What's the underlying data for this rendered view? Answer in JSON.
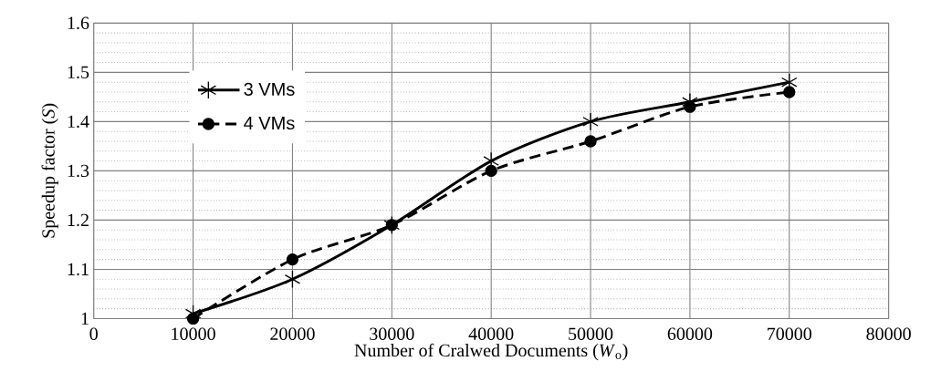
{
  "chart_data": {
    "type": "line",
    "xlabel": "Number of Cralwed Documents (*W*$_{o}$)",
    "ylabel": "Speedup factor (*S*)",
    "x": [
      10000,
      20000,
      30000,
      40000,
      50000,
      60000,
      70000
    ],
    "series": [
      {
        "name": "3 VMs",
        "color": "#000000",
        "marker": "cross",
        "line_style": "solid",
        "values": [
          1.01,
          1.08,
          1.19,
          1.32,
          1.4,
          1.44,
          1.48
        ]
      },
      {
        "name": "4 VMs",
        "color": "#000000",
        "marker": "circle",
        "line_style": "dashed",
        "values": [
          1.0,
          1.12,
          1.19,
          1.3,
          1.36,
          1.43,
          1.46
        ]
      }
    ],
    "xlim": [
      0,
      80000
    ],
    "xticks": [
      0,
      10000,
      20000,
      30000,
      40000,
      50000,
      60000,
      70000,
      80000
    ],
    "ylim": [
      1,
      1.6
    ],
    "yticks": [
      1,
      {
        "value": 1.02,
        "label": null
      },
      {
        "value": 1.04,
        "label": null
      },
      {
        "value": 1.06,
        "label": null
      },
      {
        "value": 1.08,
        "label": null
      },
      1.1,
      {
        "value": 1.12,
        "label": null
      },
      {
        "value": 1.14,
        "label": null
      },
      {
        "value": 1.16,
        "label": null
      },
      {
        "value": 1.18,
        "label": null
      },
      1.2,
      {
        "value": 1.22,
        "label": null
      },
      {
        "value": 1.24,
        "label": null
      },
      {
        "value": 1.26,
        "label": null
      },
      {
        "value": 1.28,
        "label": null
      },
      1.3,
      {
        "value": 1.32,
        "label": null
      },
      {
        "value": 1.34,
        "label": null
      },
      {
        "value": 1.36,
        "label": null
      },
      {
        "value": 1.38,
        "label": null
      },
      1.4,
      {
        "value": 1.42,
        "label": null
      },
      {
        "value": 1.44,
        "label": null
      },
      {
        "value": 1.46,
        "label": null
      },
      {
        "value": 1.48,
        "label": null
      },
      1.5,
      {
        "value": 1.52,
        "label": null
      },
      {
        "value": 1.54,
        "label": null
      },
      {
        "value": 1.56,
        "label": null
      },
      {
        "value": 1.58,
        "label": null
      },
      1.6
    ],
    "grid": true,
    "legend": "top left"
  }
}
